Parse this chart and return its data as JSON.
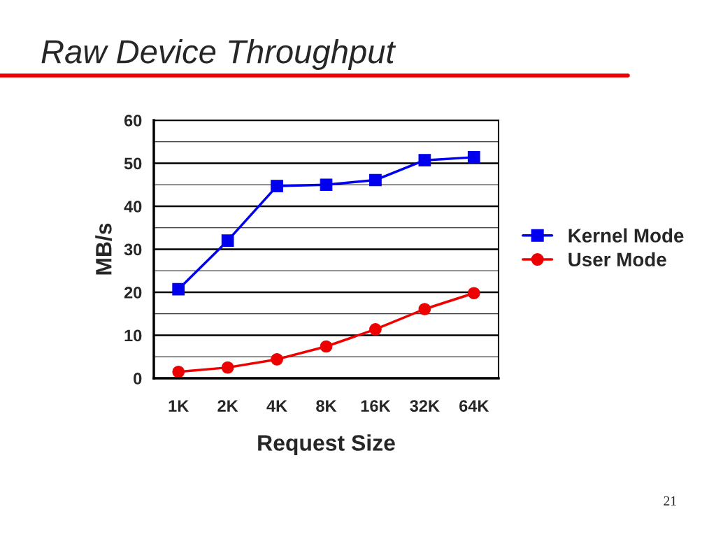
{
  "chart_data": {
    "type": "line",
    "title": "Raw Device Throughput",
    "xlabel": "Request Size",
    "ylabel": "MB/s",
    "categories": [
      "1K",
      "2K",
      "4K",
      "8K",
      "16K",
      "32K",
      "64K"
    ],
    "series": [
      {
        "name": "Kernel Mode",
        "color": "#0000ee",
        "marker": "square",
        "values": [
          20.7,
          32.0,
          44.7,
          45.0,
          46.1,
          50.7,
          51.4
        ]
      },
      {
        "name": "User Mode",
        "color": "#ee0000",
        "marker": "circle",
        "values": [
          1.5,
          2.5,
          4.4,
          7.4,
          11.4,
          16.1,
          19.8
        ]
      }
    ],
    "ylim": [
      0,
      60
    ],
    "yticks": [
      0,
      {
        "value": 5,
        "label": null
      },
      10,
      {
        "value": 15,
        "label": null
      },
      20,
      {
        "value": 25,
        "label": null
      },
      30,
      {
        "value": 35,
        "label": null
      },
      40,
      {
        "value": 45,
        "label": null
      },
      50,
      {
        "value": 55,
        "label": null
      },
      60
    ],
    "grid": "y",
    "legend": "right",
    "line_style": "solid",
    "annotations": [
      "21"
    ]
  }
}
